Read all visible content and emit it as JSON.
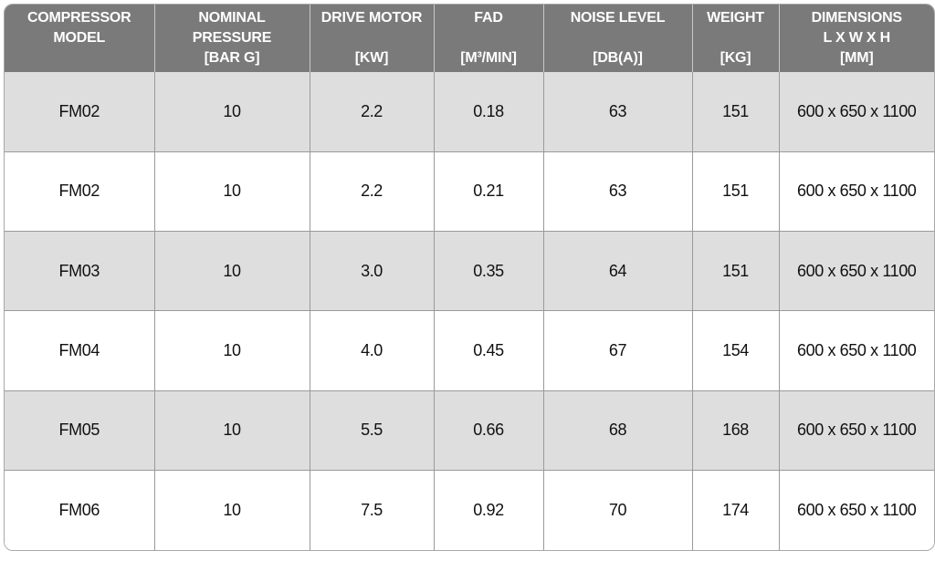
{
  "header": {
    "model": [
      "COMPRESSOR",
      "MODEL"
    ],
    "pressure": [
      "NOMINAL",
      "PRESSURE",
      "[BAR G]"
    ],
    "motor": [
      "DRIVE MOTOR",
      "",
      "[KW]"
    ],
    "fad": [
      "FAD",
      "",
      "[M³/MIN]"
    ],
    "noise": [
      "NOISE LEVEL",
      "",
      "[DB(A)]"
    ],
    "weight": [
      "WEIGHT",
      "",
      "[KG]"
    ],
    "dimensions": [
      "DIMENSIONS",
      "L X W X H",
      "[MM]"
    ]
  },
  "rows": [
    {
      "model": "FM02",
      "pressure": "10",
      "motor": "2.2",
      "fad": "0.18",
      "noise": "63",
      "weight": "151",
      "dimensions": "600 x 650 x 1100"
    },
    {
      "model": "FM02",
      "pressure": "10",
      "motor": "2.2",
      "fad": "0.21",
      "noise": "63",
      "weight": "151",
      "dimensions": "600 x 650 x 1100"
    },
    {
      "model": "FM03",
      "pressure": "10",
      "motor": "3.0",
      "fad": "0.35",
      "noise": "64",
      "weight": "151",
      "dimensions": "600 x 650 x 1100"
    },
    {
      "model": "FM04",
      "pressure": "10",
      "motor": "4.0",
      "fad": "0.45",
      "noise": "67",
      "weight": "154",
      "dimensions": "600 x 650 x 1100"
    },
    {
      "model": "FM05",
      "pressure": "10",
      "motor": "5.5",
      "fad": "0.66",
      "noise": "68",
      "weight": "168",
      "dimensions": "600 x 650 x 1100"
    },
    {
      "model": "FM06",
      "pressure": "10",
      "motor": "7.5",
      "fad": "0.92",
      "noise": "70",
      "weight": "174",
      "dimensions": "600 x 650 x 1100"
    }
  ],
  "colors": {
    "header_bg": "#7a7a7a",
    "header_text": "#ffffff",
    "shaded_row": "#dedede",
    "plain_row": "#ffffff"
  }
}
